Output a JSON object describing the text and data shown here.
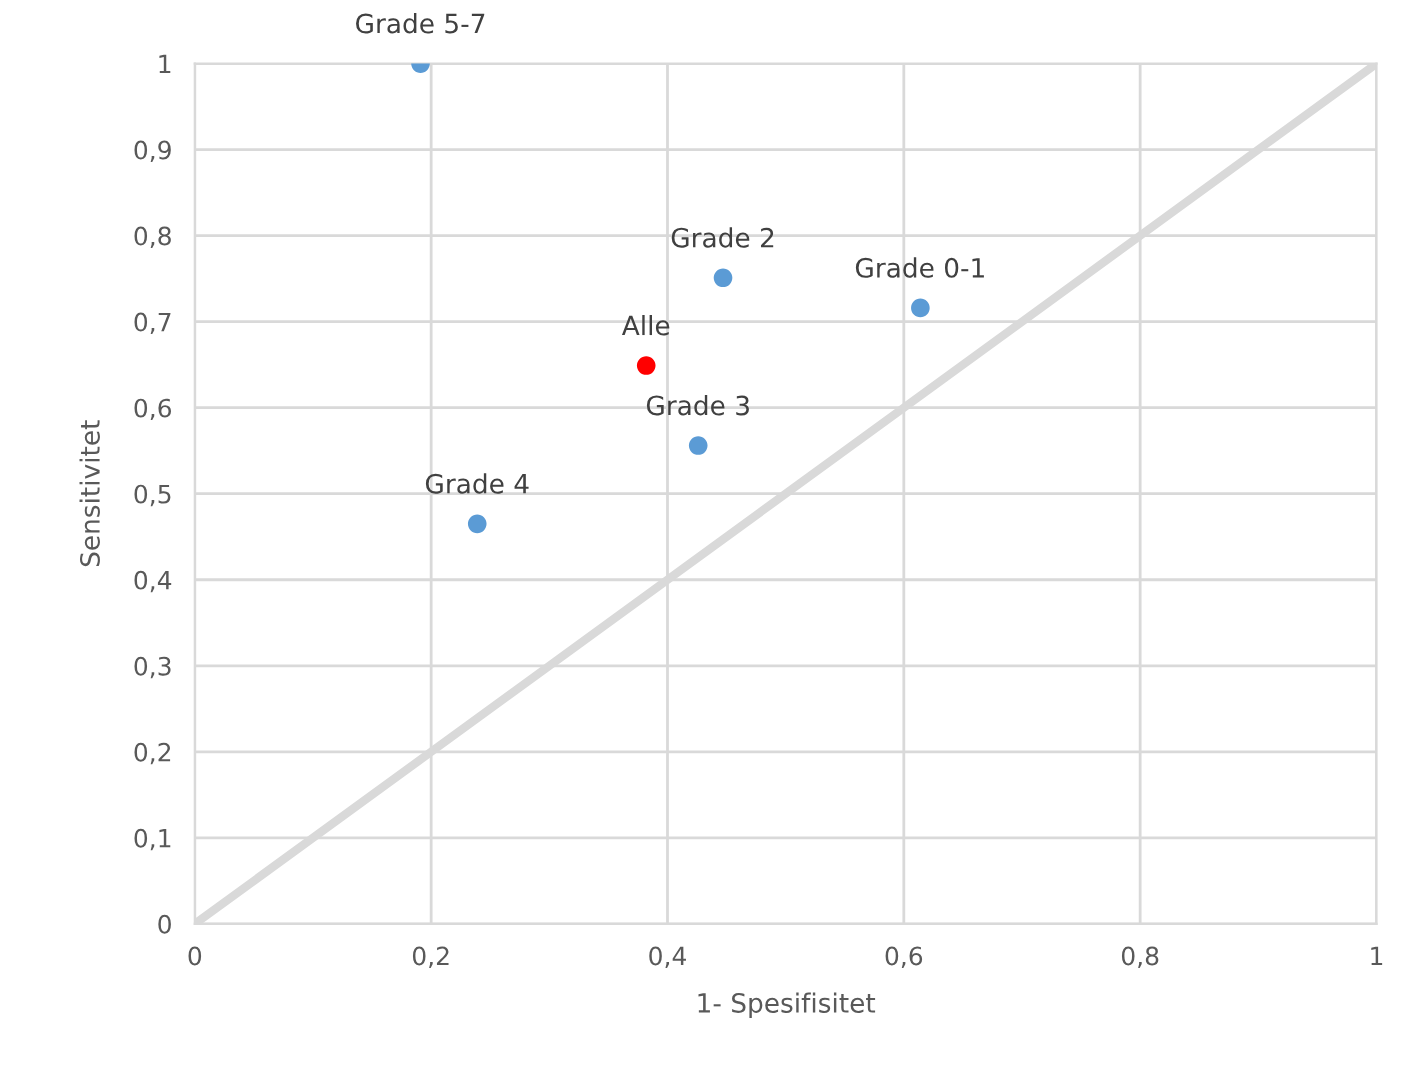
{
  "chart_data": {
    "type": "scatter",
    "xlabel": "1- Spesifisitet",
    "ylabel": "Sensitivitet",
    "x": [
      0.191,
      0.447,
      0.614,
      0.382,
      0.426,
      0.239
    ],
    "series": [
      {
        "marker": "circle",
        "values": [
          1.0,
          0.751,
          0.716,
          0.649,
          0.556,
          0.465
        ],
        "colors": [
          "#5b9bd5",
          "#5b9bd5",
          "#5b9bd5",
          "#ff0000",
          "#5b9bd5",
          "#5b9bd5"
        ]
      },
      {
        "type": "line",
        "x": [
          0,
          1
        ],
        "values": [
          0,
          1
        ],
        "color": "#d9d9d9",
        "marker": "none"
      }
    ],
    "annotations": [
      {
        "text": "Grade 5-7",
        "x": 0.191,
        "y": 1.0
      },
      {
        "text": "Grade 2",
        "x": 0.447,
        "y": 0.751
      },
      {
        "text": "Grade 0-1",
        "x": 0.614,
        "y": 0.716
      },
      {
        "text": "Alle",
        "x": 0.382,
        "y": 0.649
      },
      {
        "text": "Grade 3",
        "x": 0.426,
        "y": 0.556
      },
      {
        "text": "Grade 4",
        "x": 0.239,
        "y": 0.465
      }
    ],
    "xlim": [
      0,
      1
    ],
    "ylim": [
      0,
      1
    ],
    "xticks": [
      0,
      {
        "value": 0.2,
        "label": "0,2"
      },
      {
        "value": 0.4,
        "label": "0,4"
      },
      {
        "value": 0.6,
        "label": "0,6"
      },
      {
        "value": 0.8,
        "label": "0,8"
      },
      1
    ],
    "yticks": [
      0,
      {
        "value": 0.1,
        "label": "0,1"
      },
      {
        "value": 0.2,
        "label": "0,2"
      },
      {
        "value": 0.3,
        "label": "0,3"
      },
      {
        "value": 0.4,
        "label": "0,4"
      },
      {
        "value": 0.5,
        "label": "0,5"
      },
      {
        "value": 0.6,
        "label": "0,6"
      },
      {
        "value": 0.7,
        "label": "0,7"
      },
      {
        "value": 0.8,
        "label": "0,8"
      },
      {
        "value": 0.9,
        "label": "0,9"
      },
      1
    ],
    "grid": true,
    "legend": false
  }
}
